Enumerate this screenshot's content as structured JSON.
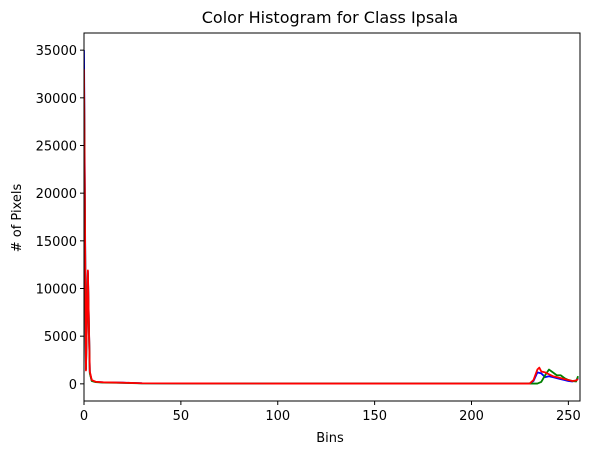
{
  "chart_data": {
    "type": "line",
    "title": "Color Histogram for Class Ipsala",
    "xlabel": "Bins",
    "ylabel": "# of Pixels",
    "xlim": [
      0,
      256
    ],
    "ylim": [
      -1800,
      36800
    ],
    "xticks": [
      0,
      50,
      100,
      150,
      200,
      250
    ],
    "yticks": [
      0,
      5000,
      10000,
      15000,
      20000,
      25000,
      30000,
      35000
    ],
    "grid": false,
    "legend": false,
    "series": [
      {
        "color": "#0000ff",
        "points": [
          [
            0,
            35000
          ],
          [
            1,
            1500
          ],
          [
            2,
            11800
          ],
          [
            3,
            1200
          ],
          [
            4,
            350
          ],
          [
            6,
            200
          ],
          [
            10,
            150
          ],
          [
            20,
            120
          ],
          [
            30,
            60
          ],
          [
            60,
            40
          ],
          [
            100,
            30
          ],
          [
            150,
            30
          ],
          [
            200,
            30
          ],
          [
            230,
            30
          ],
          [
            232,
            300
          ],
          [
            234,
            1200
          ],
          [
            236,
            1100
          ],
          [
            238,
            700
          ],
          [
            240,
            800
          ],
          [
            242,
            700
          ],
          [
            244,
            600
          ],
          [
            246,
            500
          ],
          [
            248,
            400
          ],
          [
            250,
            300
          ],
          [
            252,
            250
          ],
          [
            254,
            350
          ],
          [
            255,
            600
          ]
        ]
      },
      {
        "color": "#008000",
        "points": [
          [
            0,
            32000
          ],
          [
            1,
            1600
          ],
          [
            2,
            11600
          ],
          [
            3,
            1100
          ],
          [
            4,
            300
          ],
          [
            6,
            180
          ],
          [
            10,
            130
          ],
          [
            20,
            100
          ],
          [
            30,
            50
          ],
          [
            60,
            40
          ],
          [
            100,
            30
          ],
          [
            150,
            30
          ],
          [
            200,
            30
          ],
          [
            234,
            30
          ],
          [
            236,
            200
          ],
          [
            238,
            900
          ],
          [
            240,
            1500
          ],
          [
            242,
            1200
          ],
          [
            244,
            900
          ],
          [
            246,
            900
          ],
          [
            248,
            600
          ],
          [
            250,
            400
          ],
          [
            252,
            300
          ],
          [
            254,
            250
          ],
          [
            255,
            800
          ]
        ]
      },
      {
        "color": "#ff0000",
        "points": [
          [
            0,
            33000
          ],
          [
            1,
            1400
          ],
          [
            2,
            11900
          ],
          [
            3,
            1300
          ],
          [
            4,
            400
          ],
          [
            6,
            220
          ],
          [
            10,
            160
          ],
          [
            20,
            120
          ],
          [
            30,
            60
          ],
          [
            60,
            40
          ],
          [
            100,
            30
          ],
          [
            150,
            30
          ],
          [
            200,
            30
          ],
          [
            230,
            30
          ],
          [
            232,
            400
          ],
          [
            234,
            1500
          ],
          [
            235,
            1700
          ],
          [
            236,
            1300
          ],
          [
            238,
            1200
          ],
          [
            240,
            1000
          ],
          [
            242,
            800
          ],
          [
            244,
            700
          ],
          [
            246,
            600
          ],
          [
            248,
            500
          ],
          [
            250,
            400
          ],
          [
            252,
            300
          ],
          [
            254,
            350
          ],
          [
            255,
            500
          ]
        ]
      }
    ]
  }
}
